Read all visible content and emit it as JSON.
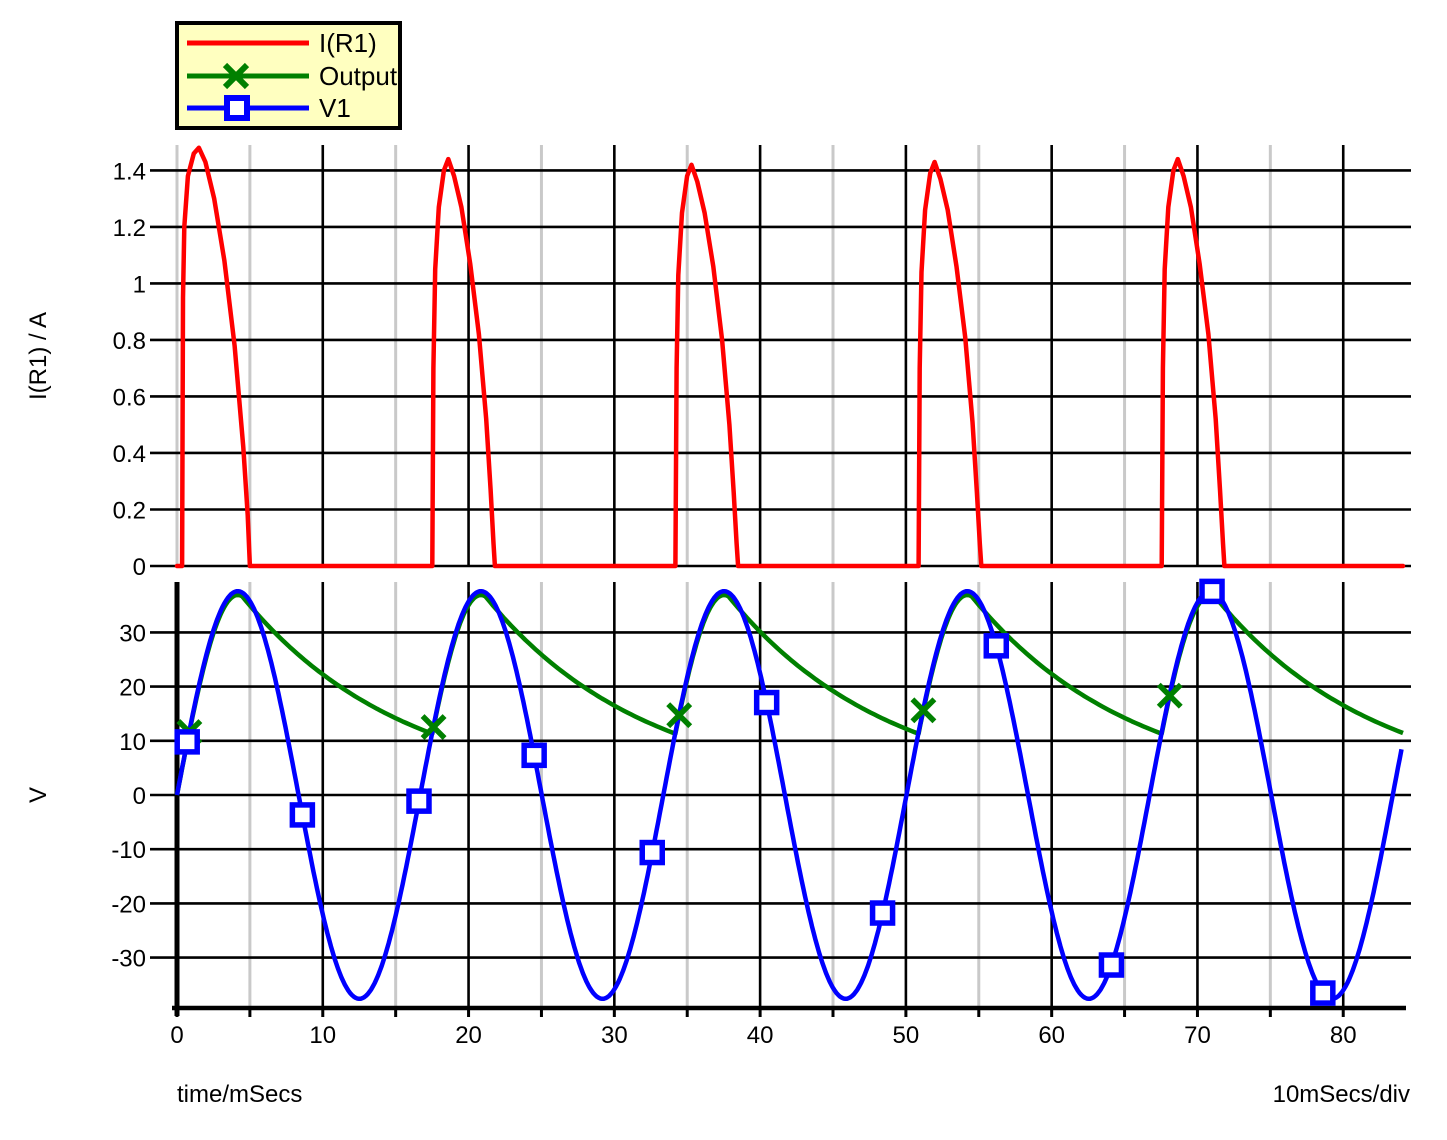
{
  "chart_data": {
    "type": "line",
    "x": {
      "label": "time/mSecs",
      "per_div_label": "10mSecs/div",
      "min": 0,
      "max": 84.1,
      "major_ticks": [
        0,
        10,
        20,
        30,
        40,
        50,
        60,
        70,
        80
      ],
      "minor_ticks": [
        0,
        5,
        15,
        25,
        35,
        45,
        55,
        65,
        75
      ]
    },
    "colors": {
      "grid_major": "#000000",
      "grid_minor": "#c9c9c9",
      "legend_bg": "#ffffc0",
      "background": "#ffffff"
    },
    "panels": [
      {
        "ylabel": "I(R1) / A",
        "ymin": 0,
        "ymax": 1.49,
        "yticks": [
          0,
          0.2,
          0.4,
          0.6,
          0.8,
          1,
          1.2,
          1.4
        ],
        "series": [
          {
            "name": "I(R1)",
            "color": "#ff0000",
            "marker": "none",
            "points": [
              [
                0,
                0
              ],
              [
                0.35,
                0
              ],
              [
                0.41,
                0.95
              ],
              [
                0.5,
                1.2
              ],
              [
                0.75,
                1.38
              ],
              [
                1.15,
                1.46
              ],
              [
                1.5,
                1.48
              ],
              [
                1.95,
                1.43
              ],
              [
                2.55,
                1.3
              ],
              [
                3.25,
                1.08
              ],
              [
                3.95,
                0.78
              ],
              [
                4.55,
                0.42
              ],
              [
                4.85,
                0.18
              ],
              [
                5.0,
                0
              ],
              [
                17.51,
                0
              ],
              [
                17.59,
                0.7
              ],
              [
                17.71,
                1.05
              ],
              [
                17.96,
                1.27
              ],
              [
                18.31,
                1.4
              ],
              [
                18.61,
                1.44
              ],
              [
                19.01,
                1.38
              ],
              [
                19.51,
                1.27
              ],
              [
                20.11,
                1.07
              ],
              [
                20.71,
                0.82
              ],
              [
                21.21,
                0.52
              ],
              [
                21.51,
                0.27
              ],
              [
                21.71,
                0.08
              ],
              [
                21.81,
                0
              ],
              [
                34.19,
                0
              ],
              [
                34.27,
                0.7
              ],
              [
                34.39,
                1.03
              ],
              [
                34.64,
                1.25
              ],
              [
                34.99,
                1.38
              ],
              [
                35.29,
                1.42
              ],
              [
                35.69,
                1.36
              ],
              [
                36.19,
                1.25
              ],
              [
                36.79,
                1.06
              ],
              [
                37.39,
                0.8
              ],
              [
                37.89,
                0.5
              ],
              [
                38.19,
                0.26
              ],
              [
                38.39,
                0.08
              ],
              [
                38.49,
                0
              ],
              [
                50.87,
                0
              ],
              [
                50.95,
                0.7
              ],
              [
                51.07,
                1.04
              ],
              [
                51.32,
                1.26
              ],
              [
                51.67,
                1.39
              ],
              [
                51.97,
                1.43
              ],
              [
                52.37,
                1.37
              ],
              [
                52.87,
                1.26
              ],
              [
                53.47,
                1.06
              ],
              [
                54.07,
                0.81
              ],
              [
                54.57,
                0.51
              ],
              [
                54.87,
                0.26
              ],
              [
                55.07,
                0.08
              ],
              [
                55.17,
                0
              ],
              [
                67.55,
                0
              ],
              [
                67.63,
                0.7
              ],
              [
                67.75,
                1.05
              ],
              [
                68.0,
                1.27
              ],
              [
                68.35,
                1.4
              ],
              [
                68.65,
                1.44
              ],
              [
                69.05,
                1.38
              ],
              [
                69.55,
                1.27
              ],
              [
                70.15,
                1.07
              ],
              [
                70.75,
                0.82
              ],
              [
                71.25,
                0.52
              ],
              [
                71.55,
                0.27
              ],
              [
                71.75,
                0.08
              ],
              [
                71.85,
                0
              ],
              [
                84.1,
                0
              ]
            ]
          }
        ]
      },
      {
        "ylabel": "V",
        "ymin": -39.3,
        "ymax": 39.3,
        "yticks": [
          -30,
          -20,
          -10,
          0,
          10,
          20,
          30
        ],
        "series": [
          {
            "name": "Output",
            "color": "#008000",
            "marker": "x",
            "model": {
              "kind": "rectified",
              "amplitude": 36.9,
              "period_ms": 16.68,
              "decay_tau_ms": 11.08,
              "peak_v": 36.9,
              "min_v": 11.3,
              "segments": [
                {
                  "kind": "sine",
                  "t0": 0,
                  "t1": 4.47
                },
                {
                  "kind": "decay",
                  "t0": 4.47,
                  "t1": 17.51
                },
                {
                  "kind": "sine",
                  "t0": 17.51,
                  "t1": 21.15
                },
                {
                  "kind": "decay",
                  "t0": 21.15,
                  "t1": 34.19
                },
                {
                  "kind": "sine",
                  "t0": 34.19,
                  "t1": 37.83
                },
                {
                  "kind": "decay",
                  "t0": 37.83,
                  "t1": 50.87
                },
                {
                  "kind": "sine",
                  "t0": 50.87,
                  "t1": 54.51
                },
                {
                  "kind": "decay",
                  "t0": 54.51,
                  "t1": 67.55
                },
                {
                  "kind": "sine",
                  "t0": 67.55,
                  "t1": 71.19
                },
                {
                  "kind": "decay",
                  "t0": 71.19,
                  "t1": 84.1
                }
              ]
            },
            "marker_t": [
              0.85,
              17.6,
              34.45,
              51.2,
              68.1
            ]
          },
          {
            "name": "V1",
            "color": "#0000ff",
            "marker": "square",
            "model": {
              "kind": "sine",
              "amplitude": 37.6,
              "period_ms": 16.68,
              "t0": 0,
              "t1": 84.1
            },
            "marker_t": [
              0.7,
              8.6,
              16.6,
              24.5,
              32.6,
              40.45,
              48.4,
              56.2,
              64.1,
              71.0,
              78.6
            ]
          }
        ]
      }
    ],
    "legend": [
      {
        "label": "I(R1)",
        "color": "#ff0000",
        "marker": "none"
      },
      {
        "label": "Output",
        "color": "#008000",
        "marker": "x"
      },
      {
        "label": "V1",
        "color": "#0000ff",
        "marker": "square"
      }
    ]
  }
}
